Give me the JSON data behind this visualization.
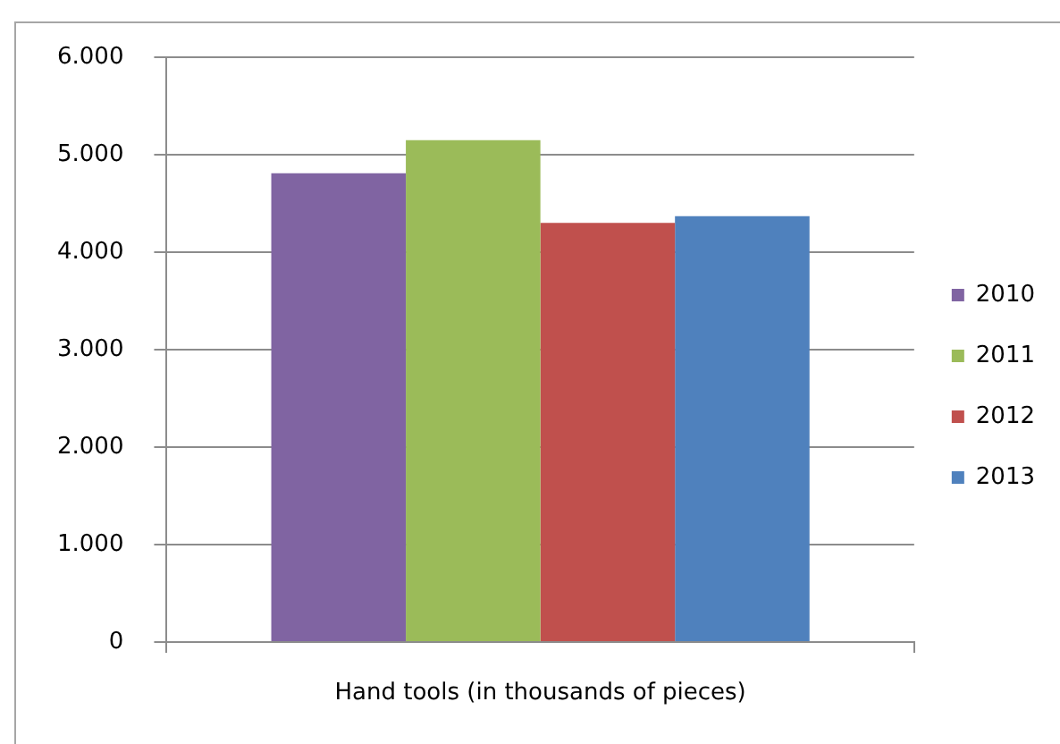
{
  "chart_data": {
    "type": "bar",
    "categories": [
      "Hand tools (in thousands of pieces)"
    ],
    "series": [
      {
        "name": "2010",
        "color": "#8064a2",
        "values": [
          4810
        ]
      },
      {
        "name": "2011",
        "color": "#9bbb59",
        "values": [
          5150
        ]
      },
      {
        "name": "2012",
        "color": "#c0504d",
        "values": [
          4300
        ]
      },
      {
        "name": "2013",
        "color": "#4f81bd",
        "values": [
          4370
        ]
      }
    ],
    "ylim": [
      0,
      6000
    ],
    "yticks": [
      0,
      {
        "value": 1000,
        "label": "1.000"
      },
      {
        "value": 2000,
        "label": "2.000"
      },
      {
        "value": 3000,
        "label": "3.000"
      },
      {
        "value": 4000,
        "label": "4.000"
      },
      {
        "value": 5000,
        "label": "5.000"
      },
      {
        "value": 6000,
        "label": "6.000"
      }
    ],
    "grid": "y",
    "legend": "right"
  }
}
